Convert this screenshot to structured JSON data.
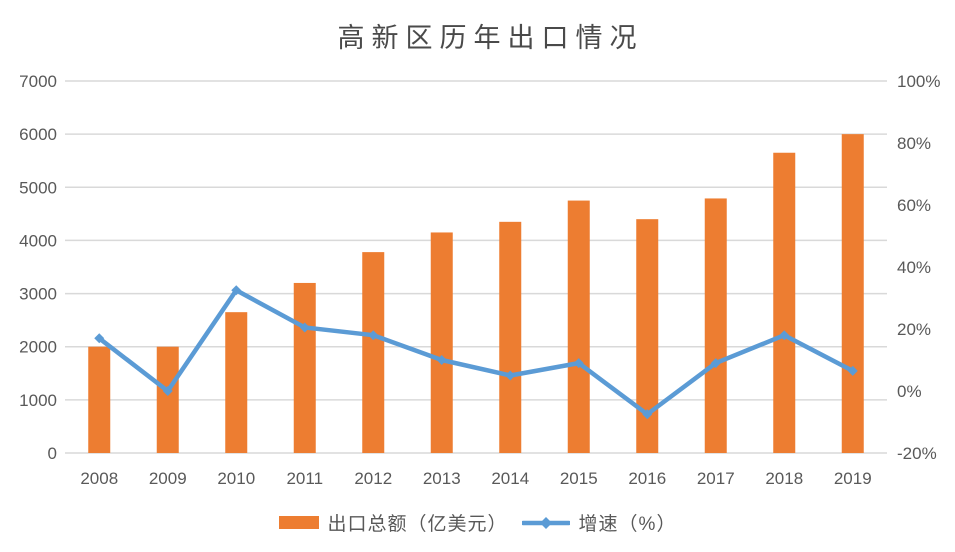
{
  "title": "高新区历年出口情况",
  "chart_data": {
    "type": "combo",
    "title": "高新区历年出口情况",
    "categories": [
      "2008",
      "2009",
      "2010",
      "2011",
      "2012",
      "2013",
      "2014",
      "2015",
      "2016",
      "2017",
      "2018",
      "2019"
    ],
    "series": [
      {
        "name": "出口总额（亿美元）",
        "type": "bar",
        "axis": "left",
        "color": "#ED7D31",
        "values": [
          2000,
          2000,
          2650,
          3200,
          3780,
          4150,
          4350,
          4750,
          4400,
          4790,
          5650,
          6000
        ]
      },
      {
        "name": "增速（%）",
        "type": "line",
        "axis": "right",
        "color": "#5B9BD5",
        "values": [
          17,
          0,
          32.5,
          20.5,
          18,
          10,
          5,
          9,
          -7.5,
          9,
          18,
          6.5
        ]
      }
    ],
    "left_axis": {
      "min": 0,
      "max": 7000,
      "step": 1000,
      "tick_labels": [
        "0",
        "1000",
        "2000",
        "3000",
        "4000",
        "5000",
        "6000",
        "7000"
      ]
    },
    "right_axis": {
      "min": -20,
      "max": 100,
      "step": 20,
      "tick_labels": [
        "-20%",
        "0%",
        "20%",
        "40%",
        "60%",
        "80%",
        "100%"
      ]
    },
    "grid": true,
    "legend_position": "bottom",
    "colors": {
      "bar": "#ED7D31",
      "line": "#5B9BD5",
      "gridline": "#D9D9D9",
      "axis_text": "#595959",
      "title_text": "#4a4a4a"
    }
  }
}
